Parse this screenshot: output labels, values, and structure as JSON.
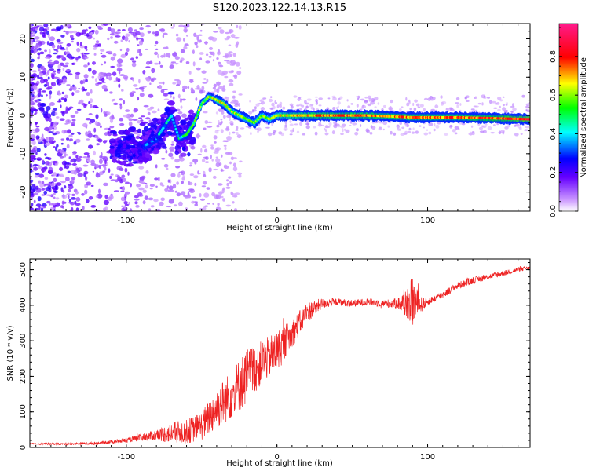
{
  "figure": {
    "title": "S120.2023.122.14.13.R15"
  },
  "chart_data": [
    {
      "type": "heatmap",
      "xlabel": "Height of straight line (km)",
      "ylabel": "Frequency (Hz)",
      "xlim": [
        -164,
        168
      ],
      "ylim": [
        -25,
        24
      ],
      "xticks": [
        -100,
        0,
        100
      ],
      "yticks": [
        -20,
        -10,
        0,
        10,
        20
      ],
      "colorbar": {
        "label": "Normalized spectral amplitude",
        "range": [
          0,
          0.97
        ],
        "ticks": [
          0.0,
          0.2,
          0.4,
          0.6,
          0.8
        ],
        "tick_labels": [
          "0.0",
          "0.2",
          "0.4",
          "0.6",
          "0.8"
        ],
        "colormap": [
          "#cc99ff",
          "#6600ff",
          "#0000ff",
          "#00ffff",
          "#00ff00",
          "#ffff00",
          "#ff0000",
          "#ff1a8c"
        ]
      },
      "ridge": {
        "x": [
          -88,
          -80,
          -75,
          -70,
          -65,
          -60,
          -55,
          -50,
          -45,
          -40,
          -35,
          -30,
          -25,
          -20,
          -15,
          -10,
          -5,
          0,
          10,
          30,
          60,
          90,
          120,
          150,
          168
        ],
        "y": [
          -8,
          -6,
          -3,
          0,
          -6,
          -5,
          -2,
          3,
          5,
          4,
          3,
          1,
          0,
          -1,
          -2,
          0,
          -1,
          0,
          0,
          0,
          0,
          -0.5,
          -0.5,
          -0.8,
          -1
        ],
        "amplitude": [
          0.3,
          0.35,
          0.4,
          0.45,
          0.45,
          0.5,
          0.55,
          0.6,
          0.6,
          0.65,
          0.65,
          0.6,
          0.6,
          0.55,
          0.55,
          0.6,
          0.6,
          0.65,
          0.7,
          0.75,
          0.75,
          0.75,
          0.75,
          0.8,
          0.85
        ]
      }
    },
    {
      "type": "line",
      "xlabel": "Height of straight line (km)",
      "ylabel": "SNR (10 * v/v)",
      "xlim": [
        -164,
        168
      ],
      "ylim": [
        0,
        530
      ],
      "xticks": [
        -100,
        0,
        100
      ],
      "yticks": [
        0,
        100,
        200,
        300,
        400,
        500
      ],
      "series": [
        {
          "color": "#ee2222",
          "x": [
            -164,
            -140,
            -120,
            -100,
            -90,
            -80,
            -70,
            -60,
            -50,
            -40,
            -30,
            -20,
            -10,
            0,
            10,
            20,
            30,
            40,
            50,
            60,
            70,
            80,
            85,
            90,
            95,
            100,
            110,
            120,
            130,
            140,
            150,
            160,
            168
          ],
          "y": [
            10,
            10,
            12,
            20,
            28,
            35,
            40,
            45,
            60,
            110,
            150,
            200,
            240,
            270,
            320,
            380,
            405,
            410,
            405,
            410,
            405,
            405,
            405,
            410,
            400,
            410,
            430,
            455,
            470,
            480,
            490,
            500,
            505
          ],
          "noise": [
            2,
            3,
            4,
            6,
            10,
            15,
            30,
            35,
            40,
            60,
            70,
            80,
            60,
            60,
            40,
            30,
            15,
            10,
            10,
            10,
            10,
            15,
            40,
            70,
            25,
            10,
            10,
            10,
            10,
            8,
            8,
            6,
            5
          ]
        }
      ]
    }
  ]
}
